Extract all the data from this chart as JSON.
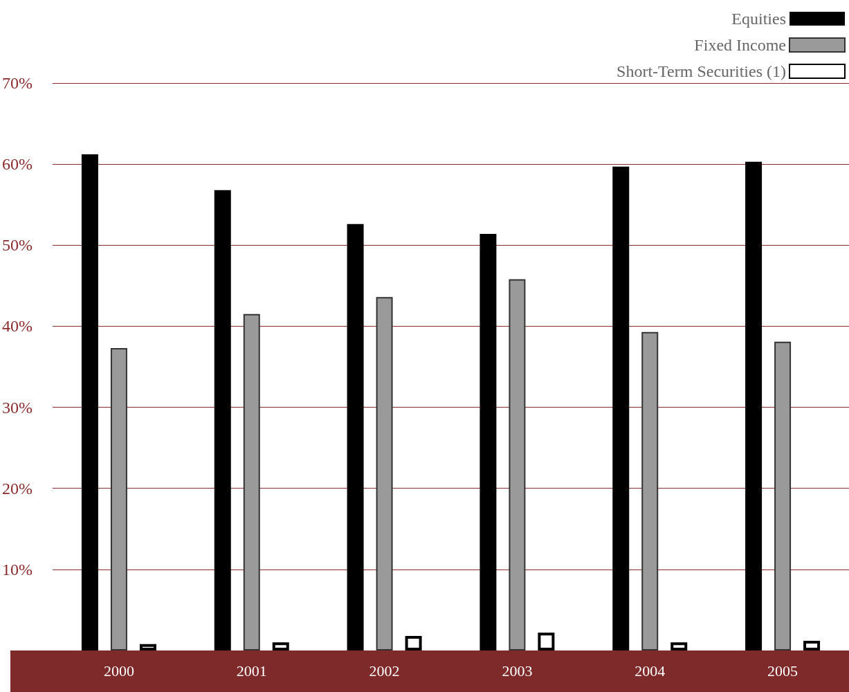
{
  "chart_data": {
    "type": "bar",
    "categories": [
      "2000",
      "2001",
      "2002",
      "2003",
      "2004",
      "2005"
    ],
    "series": [
      {
        "name": "Equities",
        "color": "#000000",
        "values": [
          61.2,
          56.8,
          52.6,
          51.4,
          59.7,
          60.3
        ]
      },
      {
        "name": "Fixed Income",
        "color": "#9a9a9a",
        "values": [
          37.3,
          41.5,
          43.6,
          45.8,
          39.3,
          38.1
        ]
      },
      {
        "name": "Short-Term Securities (1)",
        "color": "#ffffff",
        "values": [
          0.8,
          1.0,
          1.8,
          2.2,
          1.0,
          1.2
        ]
      }
    ],
    "ylim": [
      0,
      70
    ],
    "yticks": [
      {
        "value": 10,
        "label": "10%"
      },
      {
        "value": 20,
        "label": "20%"
      },
      {
        "value": 30,
        "label": "30%"
      },
      {
        "value": 40,
        "label": "40%"
      },
      {
        "value": 50,
        "label": "50%"
      },
      {
        "value": 60,
        "label": "60%"
      },
      {
        "value": 70,
        "label": "70%"
      }
    ],
    "grid": "y",
    "legend": "top right"
  }
}
